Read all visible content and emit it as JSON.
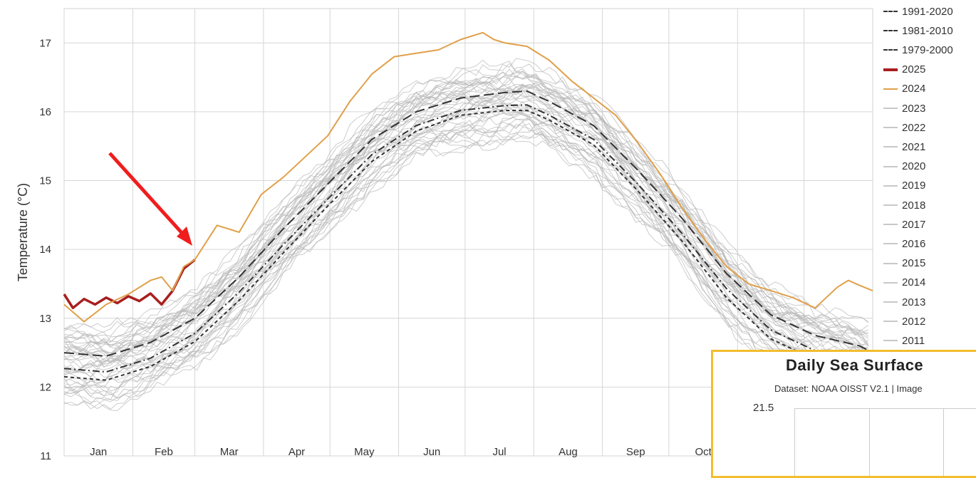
{
  "chart_data": {
    "type": "line",
    "ylabel": "Temperature (°C)",
    "ylim": [
      11,
      17.5
    ],
    "yticks": [
      11,
      12,
      13,
      14,
      15,
      16,
      17
    ],
    "x_month_labels": [
      "Jan",
      "Feb",
      "Mar",
      "Apr",
      "May",
      "Jun",
      "Jul",
      "Aug",
      "Sep",
      "Oct"
    ],
    "grid": true,
    "legend_placement": "right",
    "legend": [
      "1991-2020",
      "1981-2010",
      "1979-2000",
      "2025",
      "2024",
      "2023",
      "2022",
      "2021",
      "2020",
      "2019",
      "2018",
      "2017",
      "2016",
      "2015",
      "2014",
      "2013",
      "2012",
      "2011"
    ],
    "series": [
      {
        "name": "1991-2020",
        "style": "long-dash",
        "color": "#333333",
        "x": [
          1,
          20,
          40,
          60,
          80,
          100,
          120,
          140,
          160,
          180,
          200,
          210,
          220,
          240,
          260,
          280,
          300,
          320,
          340,
          360,
          366
        ],
        "y": [
          12.5,
          12.45,
          12.65,
          13.0,
          13.6,
          14.3,
          14.95,
          15.6,
          16.0,
          16.2,
          16.28,
          16.3,
          16.15,
          15.8,
          15.15,
          14.45,
          13.65,
          13.05,
          12.75,
          12.6,
          12.5
        ]
      },
      {
        "name": "1981-2010",
        "style": "dash-dot",
        "color": "#333333",
        "x": [
          1,
          20,
          40,
          60,
          80,
          100,
          120,
          140,
          160,
          180,
          200,
          210,
          220,
          240,
          260,
          280,
          300,
          320,
          340,
          360,
          366
        ],
        "y": [
          12.27,
          12.22,
          12.42,
          12.78,
          13.38,
          14.07,
          14.73,
          15.38,
          15.8,
          16.02,
          16.09,
          16.1,
          15.95,
          15.6,
          14.95,
          14.23,
          13.43,
          12.83,
          12.53,
          12.38,
          12.28
        ]
      },
      {
        "name": "1979-2000",
        "style": "short-dash",
        "color": "#333333",
        "x": [
          1,
          20,
          40,
          60,
          80,
          100,
          120,
          140,
          160,
          180,
          200,
          210,
          220,
          240,
          260,
          280,
          300,
          320,
          340,
          360,
          366
        ],
        "y": [
          12.15,
          12.1,
          12.3,
          12.66,
          13.26,
          13.95,
          14.63,
          15.28,
          15.72,
          15.95,
          16.02,
          16.02,
          15.88,
          15.52,
          14.85,
          14.12,
          13.3,
          12.7,
          12.4,
          12.25,
          12.15
        ]
      },
      {
        "name": "2025",
        "style": "solid-thick",
        "color": "#a81f1f",
        "x": [
          1,
          5,
          10,
          15,
          20,
          25,
          30,
          35,
          40,
          45,
          50,
          55,
          60
        ],
        "y": [
          13.35,
          13.15,
          13.28,
          13.2,
          13.3,
          13.22,
          13.32,
          13.25,
          13.36,
          13.2,
          13.4,
          13.72,
          13.85
        ]
      },
      {
        "name": "2024",
        "style": "solid",
        "color": "#e0a04a",
        "x": [
          1,
          10,
          20,
          30,
          40,
          45,
          50,
          55,
          60,
          70,
          80,
          90,
          100,
          110,
          120,
          130,
          140,
          150,
          160,
          170,
          180,
          190,
          195,
          200,
          210,
          220,
          230,
          240,
          250,
          260,
          270,
          280,
          290,
          300,
          310,
          320,
          330,
          340,
          350,
          355,
          360,
          366
        ],
        "y": [
          13.2,
          12.95,
          13.2,
          13.35,
          13.55,
          13.6,
          13.4,
          13.75,
          13.85,
          14.35,
          14.25,
          14.8,
          15.05,
          15.35,
          15.65,
          16.15,
          16.55,
          16.8,
          16.85,
          16.9,
          17.05,
          17.15,
          17.05,
          17.0,
          16.95,
          16.75,
          16.45,
          16.2,
          15.95,
          15.55,
          15.1,
          14.6,
          14.15,
          13.75,
          13.5,
          13.4,
          13.3,
          13.15,
          13.45,
          13.55,
          13.48,
          13.4
        ]
      }
    ],
    "gray_series_note": "",
    "annotation": "red arrow pointing to end of 2025 line"
  },
  "inset": {
    "title": "Daily Sea Surface",
    "subtitle": "Dataset: NOAA OISST V2.1 | Image",
    "ytick": "21.5"
  }
}
